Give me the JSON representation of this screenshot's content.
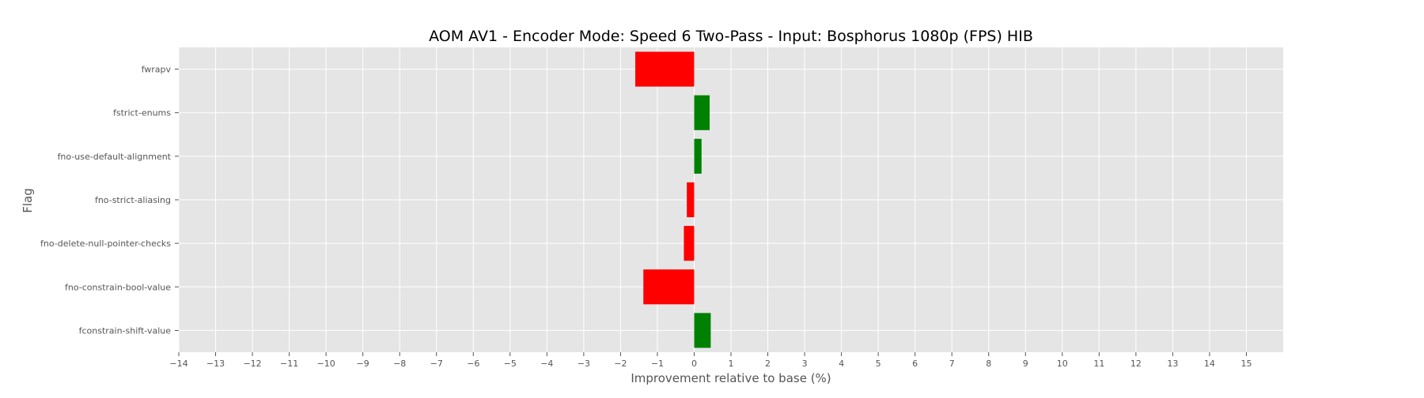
{
  "chart_data": {
    "type": "bar",
    "orientation": "horizontal",
    "title": "AOM AV1 - Encoder Mode: Speed 6 Two-Pass - Input: Bosphorus 1080p (FPS) HIB",
    "xlabel": "Improvement relative to base (%)",
    "ylabel": "Flag",
    "xlim": [
      -14,
      16
    ],
    "xticks": [
      -14,
      -13,
      -12,
      -11,
      -10,
      -9,
      -8,
      -7,
      -6,
      -5,
      -4,
      -3,
      -2,
      -1,
      0,
      1,
      2,
      3,
      4,
      5,
      6,
      7,
      8,
      9,
      10,
      11,
      12,
      13,
      14,
      15
    ],
    "grid": true,
    "categories": [
      "fwrapv",
      "fstrict-enums",
      "fno-use-default-alignment",
      "fno-strict-aliasing",
      "fno-delete-null-pointer-checks",
      "fno-constrain-bool-value",
      "fconstrain-shift-value"
    ],
    "values": [
      -1.6,
      0.42,
      0.2,
      -0.2,
      -0.28,
      -1.38,
      0.45
    ],
    "colors": {
      "positive": "#008000",
      "negative": "#ff0000",
      "plot_background": "#e5e5e5",
      "grid": "#ffffff"
    }
  }
}
